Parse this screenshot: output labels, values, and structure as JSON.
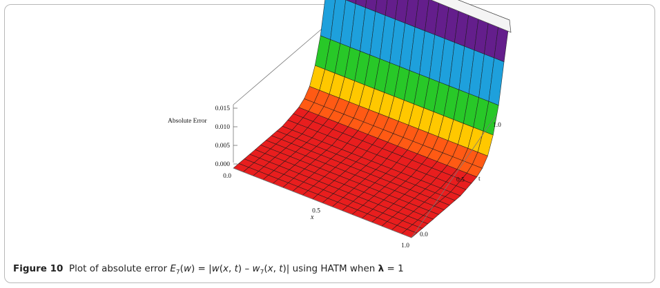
{
  "figure": {
    "label": "Figure 10",
    "caption_prefix": "Plot of absolute error ",
    "caption_suffix": " using HATM when ",
    "lambda_eq": " = 1"
  },
  "chart_data": {
    "type": "surface3d",
    "zlabel": "Absolute Error",
    "xlabel": "x",
    "ylabel": "t",
    "z_ticks": [
      "0.000",
      "0.005",
      "0.010",
      "0.015"
    ],
    "x_ticks": [
      "0.0",
      "0.5",
      "1.0"
    ],
    "t_ticks": [
      "0.0",
      "0.5",
      "1.0"
    ],
    "x_range": [
      0,
      1
    ],
    "t_range": [
      0,
      1
    ],
    "z_range": [
      0,
      0.0165
    ],
    "surface_profile_z_vs_t": [
      [
        0.0,
        0.0
      ],
      [
        0.5,
        0.0003
      ],
      [
        0.7,
        0.0012
      ],
      [
        0.8,
        0.003
      ],
      [
        0.88,
        0.007
      ],
      [
        0.94,
        0.012
      ],
      [
        1.0,
        0.0165
      ]
    ],
    "colormap": [
      "#e81e1e",
      "#ff5a14",
      "#ffc800",
      "#28c828",
      "#1ea0dc",
      "#2850c8",
      "#641e8c",
      "#a01e50"
    ]
  }
}
